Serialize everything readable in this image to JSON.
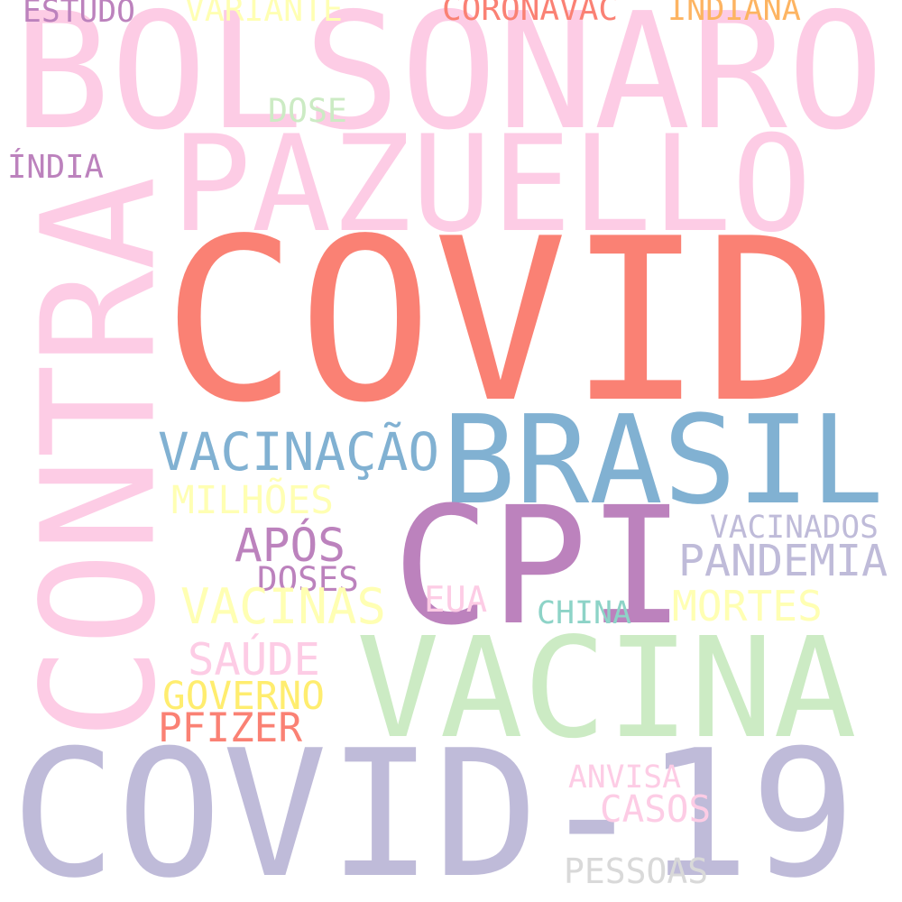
{
  "words": [
    {
      "text": "COVID-19",
      "color": "#bfbbd9"
    },
    {
      "text": "COVID",
      "color": "#fa8174"
    },
    {
      "text": "BOLSONARO",
      "color": "#fdcce5"
    },
    {
      "text": "PAZUELLO",
      "color": "#fdcce5"
    },
    {
      "text": "CONTRA",
      "color": "#fdcce5"
    },
    {
      "text": "BRASIL",
      "color": "#81b1d2"
    },
    {
      "text": "CPI",
      "color": "#bc82bd"
    },
    {
      "text": "VACINA",
      "color": "#ccebc4"
    },
    {
      "text": "VACINAÇÃO",
      "color": "#81b1d2"
    },
    {
      "text": "ESTUDO",
      "color": "#bc82bd"
    },
    {
      "text": "VARIANTE",
      "color": "#ffffb3"
    },
    {
      "text": "CORONAVAC",
      "color": "#fa8174"
    },
    {
      "text": "INDIANA",
      "color": "#fdb462"
    },
    {
      "text": "DOSE",
      "color": "#ccebc4"
    },
    {
      "text": "ÍNDIA",
      "color": "#bc82bd"
    },
    {
      "text": "MILHÕES",
      "color": "#ffffb3"
    },
    {
      "text": "APÓS",
      "color": "#bc82bd"
    },
    {
      "text": "DOSES",
      "color": "#bc82bd"
    },
    {
      "text": "VACINAS",
      "color": "#ffffb3"
    },
    {
      "text": "VACINADOS",
      "color": "#bfbbd9"
    },
    {
      "text": "PANDEMIA",
      "color": "#bfbbd9"
    },
    {
      "text": "EUA",
      "color": "#fdcce5"
    },
    {
      "text": "CHINA",
      "color": "#8dd3c7"
    },
    {
      "text": "MORTES",
      "color": "#ffffb3"
    },
    {
      "text": "SAÚDE",
      "color": "#fdcce5"
    },
    {
      "text": "GOVERNO",
      "color": "#ffed6f"
    },
    {
      "text": "PFIZER",
      "color": "#fa8174"
    },
    {
      "text": "ANVISA",
      "color": "#fdcce5"
    },
    {
      "text": "CASOS",
      "color": "#fdcce5"
    },
    {
      "text": "PESSOAS",
      "color": "#d9d9d9"
    }
  ]
}
